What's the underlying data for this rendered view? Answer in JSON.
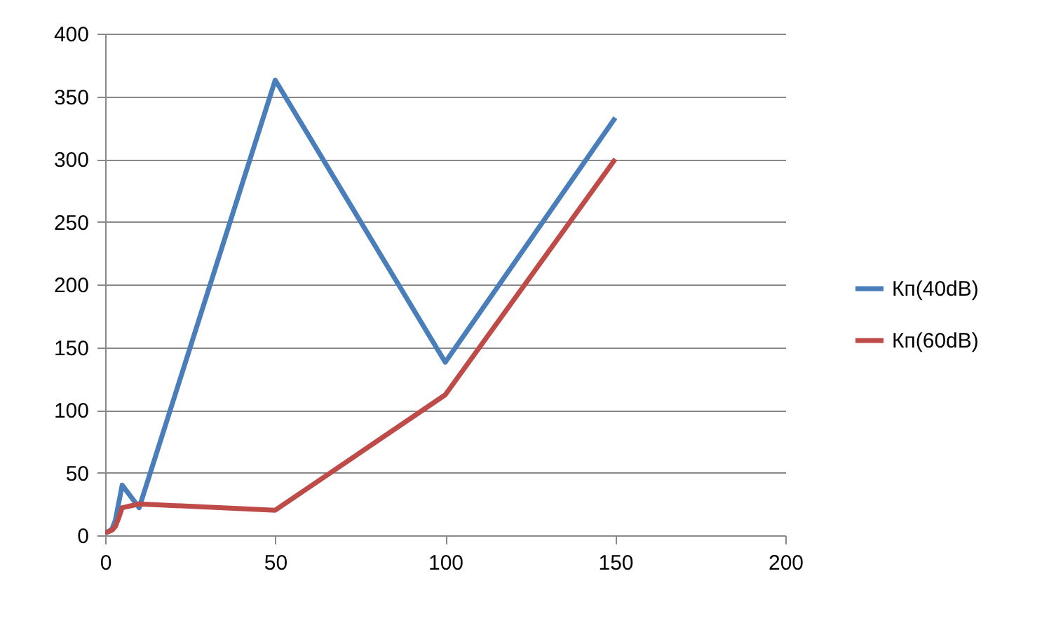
{
  "chart_data": {
    "type": "line",
    "xlim": [
      0,
      200
    ],
    "xticks": [
      0,
      50,
      100,
      150,
      200
    ],
    "ylim": [
      0,
      400
    ],
    "yticks": [
      0,
      50,
      100,
      150,
      200,
      250,
      300,
      350,
      400
    ],
    "grid": "y",
    "legend": "right",
    "line_style": "solid",
    "marker": "none",
    "series": [
      {
        "name": "Кп(40dB)",
        "color": "#4a7ebb",
        "x": [
          0,
          1,
          2,
          3,
          5,
          10,
          50,
          100,
          150
        ],
        "values": [
          2,
          3,
          5,
          12,
          40,
          22,
          363,
          138,
          333
        ]
      },
      {
        "name": "Кп(60dB)",
        "color": "#be4b48",
        "x": [
          0,
          1,
          2,
          3,
          4,
          5,
          10,
          50,
          100,
          150
        ],
        "values": [
          2,
          3,
          4,
          7,
          14,
          22,
          25,
          20,
          112,
          300
        ]
      }
    ]
  }
}
